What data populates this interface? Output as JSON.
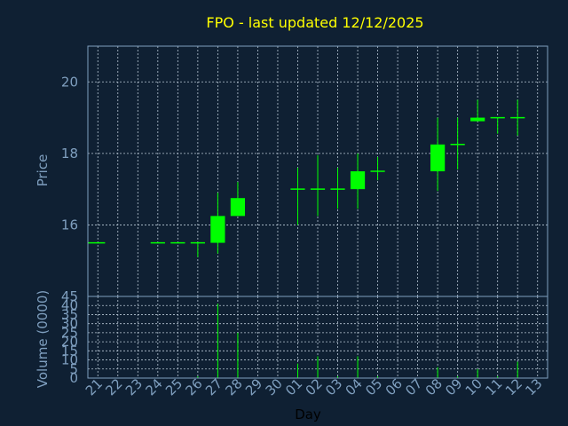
{
  "chart_data": {
    "title": "FPO - last updated 12/12/2025",
    "type": "candlestick",
    "xlabel": "Day",
    "price_panel": {
      "ylabel": "Price",
      "ylim": [
        14,
        21
      ],
      "yticks": [
        "16",
        "18",
        "20"
      ]
    },
    "volume_panel": {
      "ylabel": "Volume (0000)",
      "ylim": [
        0,
        45
      ],
      "yticks": [
        "0",
        "5",
        "10",
        "15",
        "20",
        "25",
        "30",
        "35",
        "40",
        "45"
      ]
    },
    "days": [
      "21",
      "22",
      "23",
      "24",
      "25",
      "26",
      "27",
      "28",
      "29",
      "30",
      "01",
      "02",
      "03",
      "04",
      "05",
      "06",
      "07",
      "08",
      "09",
      "10",
      "11",
      "12",
      "13"
    ],
    "candles": [
      {
        "day": "21",
        "open": 15.5,
        "close": 15.5,
        "high": 15.5,
        "low": 15.5,
        "volume": 0
      },
      {
        "day": "24",
        "open": 15.5,
        "close": 15.5,
        "high": 15.5,
        "low": 15.5,
        "volume": 0
      },
      {
        "day": "25",
        "open": 15.5,
        "close": 15.5,
        "high": 15.5,
        "low": 15.5,
        "volume": 0
      },
      {
        "day": "26",
        "open": 15.5,
        "close": 15.5,
        "high": 15.5,
        "low": 15.1,
        "volume": 1
      },
      {
        "day": "27",
        "open": 15.5,
        "close": 16.25,
        "high": 16.9,
        "low": 15.2,
        "volume": 41
      },
      {
        "day": "28",
        "open": 16.25,
        "close": 16.75,
        "high": 17.2,
        "low": 16.25,
        "volume": 25
      },
      {
        "day": "01",
        "open": 17.0,
        "close": 17.0,
        "high": 17.6,
        "low": 16.0,
        "volume": 8
      },
      {
        "day": "02",
        "open": 17.0,
        "close": 17.0,
        "high": 17.95,
        "low": 16.25,
        "volume": 12
      },
      {
        "day": "03",
        "open": 17.0,
        "close": 17.0,
        "high": 17.6,
        "low": 16.45,
        "volume": 1
      },
      {
        "day": "04",
        "open": 17.0,
        "close": 17.5,
        "high": 18.0,
        "low": 16.45,
        "volume": 12
      },
      {
        "day": "05",
        "open": 17.5,
        "close": 17.5,
        "high": 17.9,
        "low": 17.25,
        "volume": 1
      },
      {
        "day": "08",
        "open": 17.5,
        "close": 18.25,
        "high": 19.0,
        "low": 16.95,
        "volume": 6
      },
      {
        "day": "09",
        "open": 18.25,
        "close": 18.25,
        "high": 19.0,
        "low": 17.55,
        "volume": 1
      },
      {
        "day": "10",
        "open": 18.9,
        "close": 19.0,
        "high": 19.5,
        "low": 18.9,
        "volume": 5
      },
      {
        "day": "11",
        "open": 19.0,
        "close": 19.0,
        "high": 19.0,
        "low": 18.55,
        "volume": 1
      },
      {
        "day": "12",
        "open": 19.0,
        "close": 19.0,
        "high": 19.5,
        "low": 18.5,
        "volume": 9
      }
    ]
  },
  "colors": {
    "background": "#0f2033",
    "up": "#00ff00",
    "down": "#ff0000",
    "grid": "#b8c6d4",
    "axis_text": "#7f9fbf",
    "title": "#ffff00"
  }
}
